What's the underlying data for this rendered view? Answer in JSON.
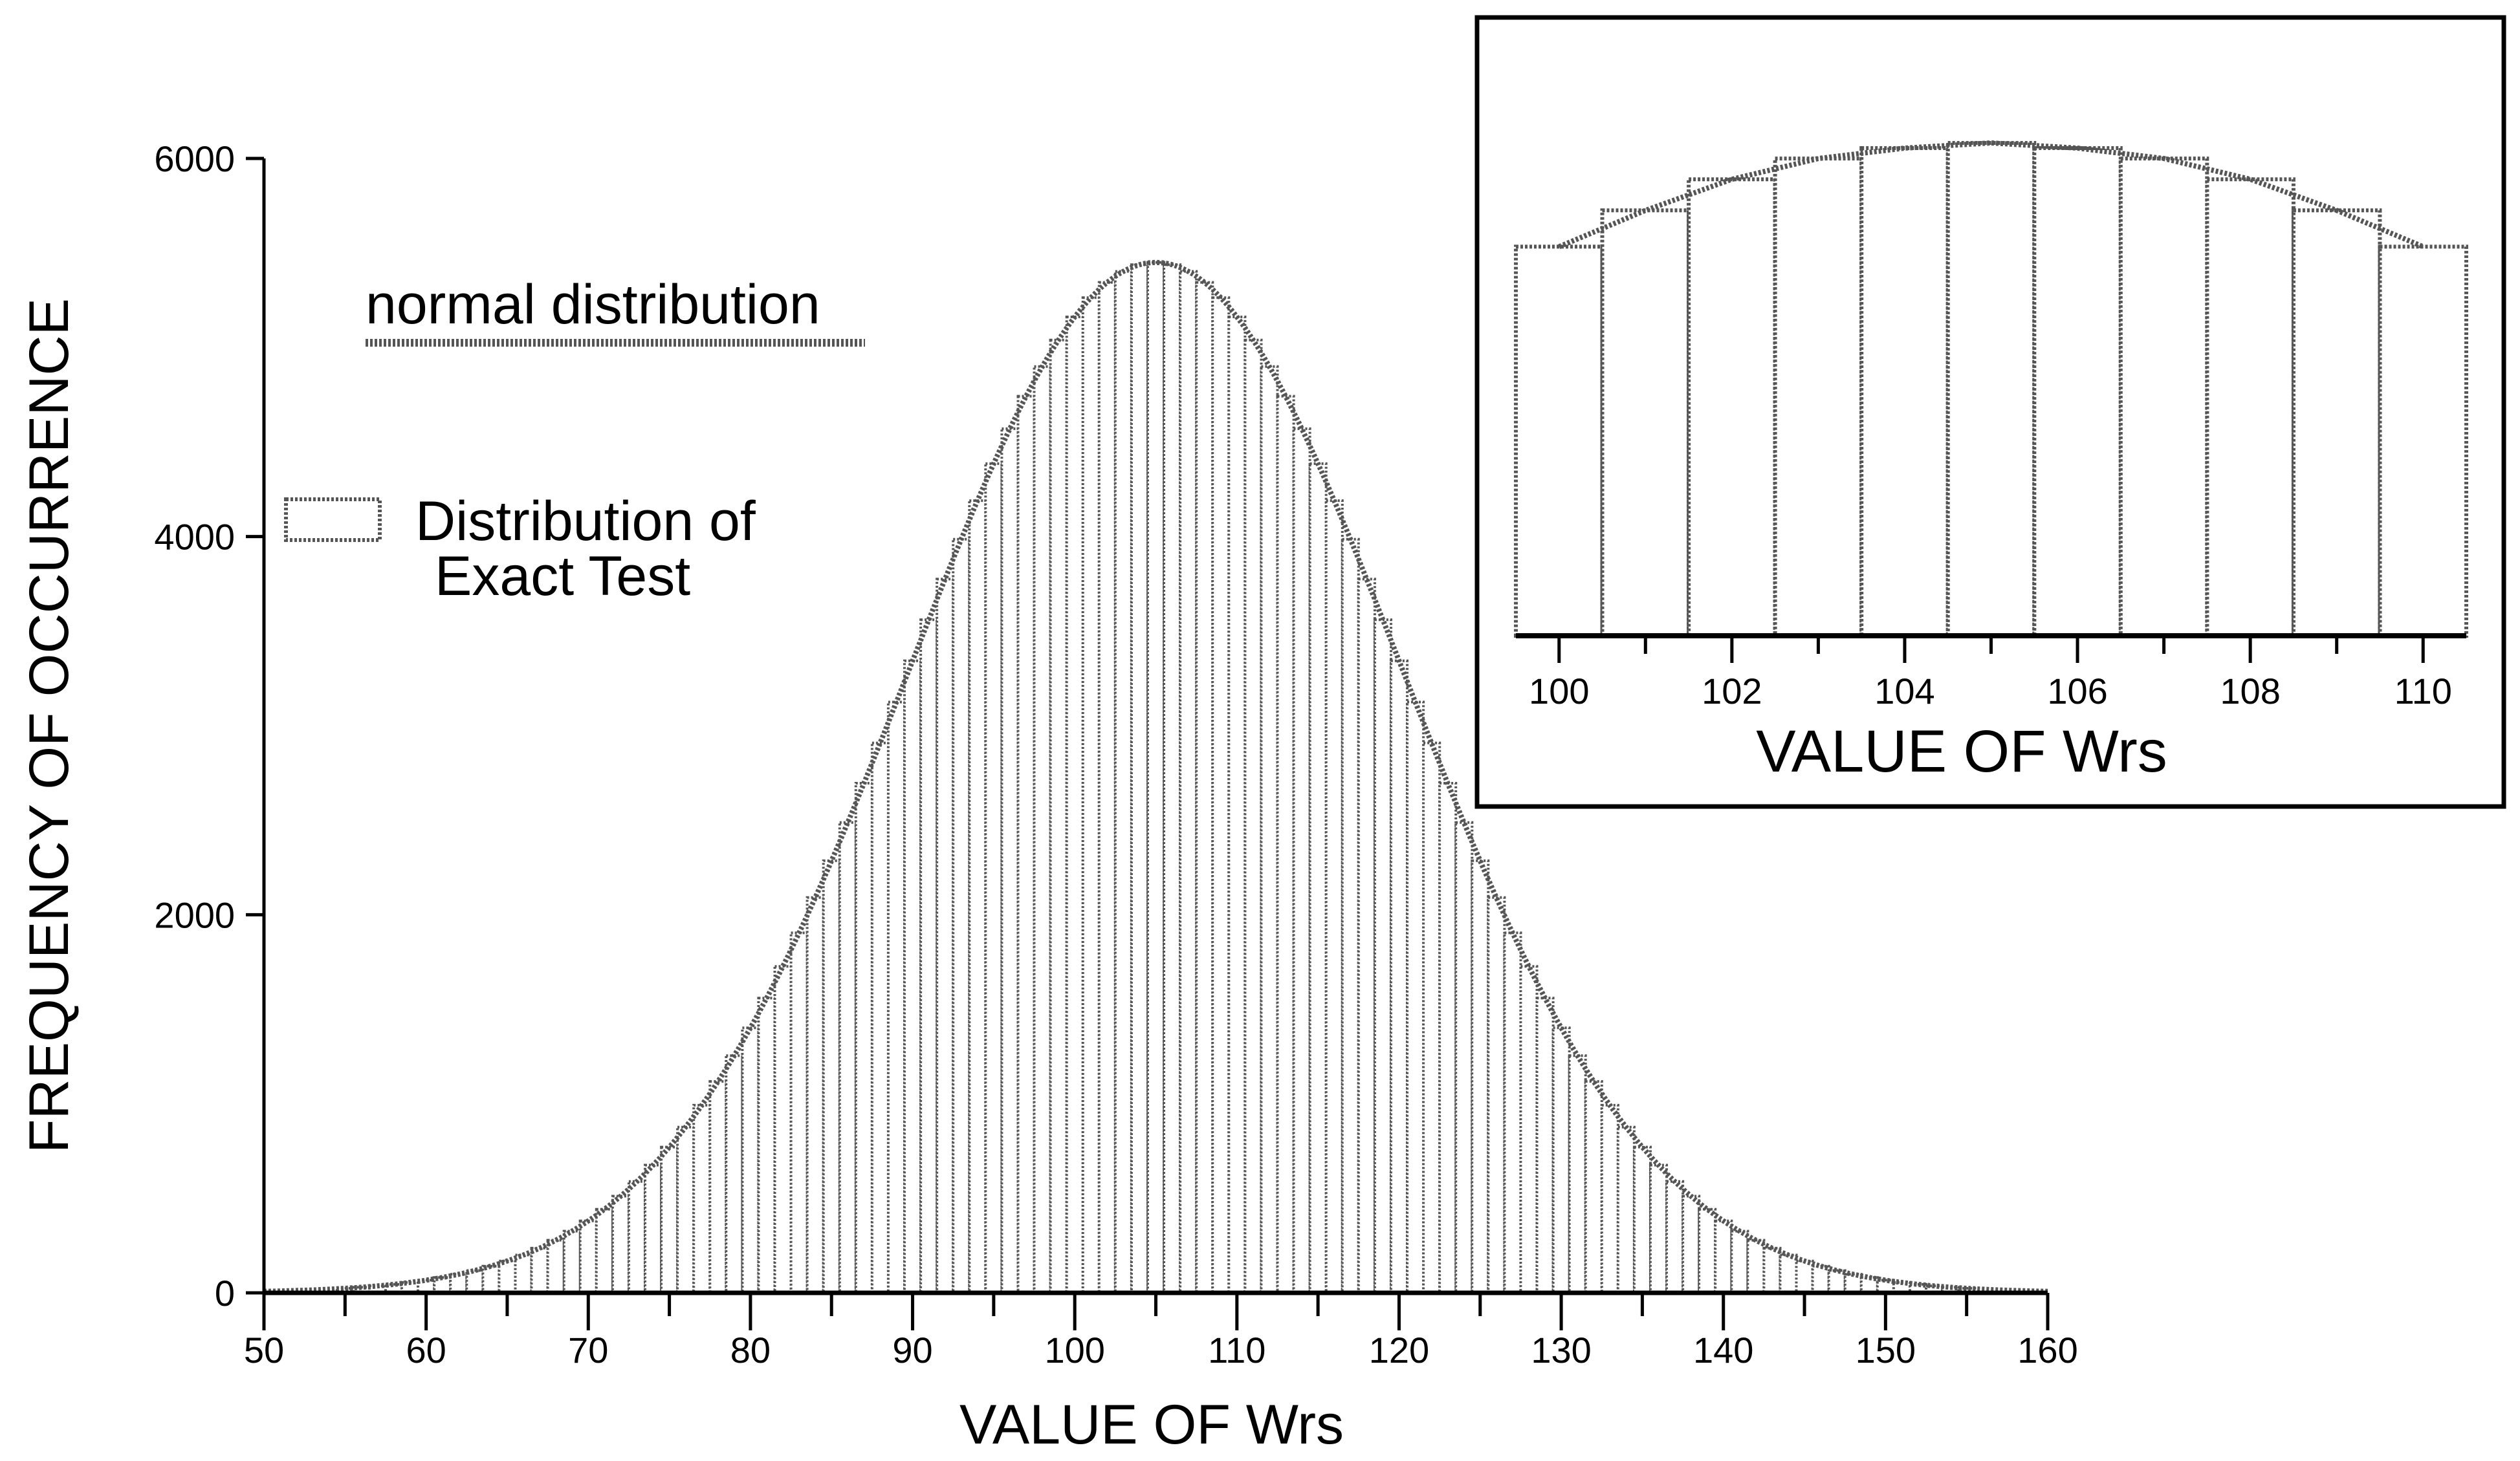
{
  "chart_data": [
    {
      "type": "bar",
      "description_role": "main",
      "xlabel": "VALUE OF Wrs",
      "ylabel": "FREQUENCY OF OCCURRENCE",
      "xlim": [
        50,
        160
      ],
      "ylim": [
        0,
        6000
      ],
      "xticks": [
        50,
        60,
        70,
        80,
        90,
        100,
        110,
        120,
        130,
        140,
        150,
        160
      ],
      "xtick_labels": [
        "50",
        "60",
        "70",
        "80",
        "90",
        "100",
        "110",
        "120",
        "130",
        "140",
        "150",
        "160"
      ],
      "yticks": [
        0,
        2000,
        4000,
        6000
      ],
      "ytick_labels": [
        "0",
        "2000",
        "4000",
        "6000"
      ],
      "grid": false,
      "legend": [
        {
          "label": "normal distribution",
          "kind": "curve"
        },
        {
          "label": "Distribution of Exact Test",
          "kind": "bar"
        }
      ],
      "legend_lines": {
        "curve": "normal distribution",
        "bar_line1": "Distribution of",
        "bar_line2": "Exact Test"
      },
      "normal_curve": {
        "mean": 105,
        "sd": 15.17,
        "peak": 5450
      },
      "series": [
        {
          "values_from": "normal_curve",
          "x_start": 55,
          "x_end": 155,
          "step": 1
        }
      ]
    },
    {
      "type": "bar",
      "description_role": "inset",
      "xlabel": "VALUE OF Wrs",
      "xlim": [
        99.5,
        110.5
      ],
      "xticks": [
        100,
        102,
        104,
        106,
        108,
        110
      ],
      "xtick_labels": [
        "100",
        "102",
        "104",
        "106",
        "108",
        "110"
      ],
      "categories": [
        100,
        101,
        102,
        103,
        104,
        105,
        106,
        107,
        108,
        109,
        110
      ],
      "values": [
        5250,
        5320,
        5380,
        5420,
        5440,
        5450,
        5440,
        5420,
        5380,
        5320,
        5250
      ],
      "ylim": [
        4500,
        5460
      ],
      "grid": false
    }
  ]
}
